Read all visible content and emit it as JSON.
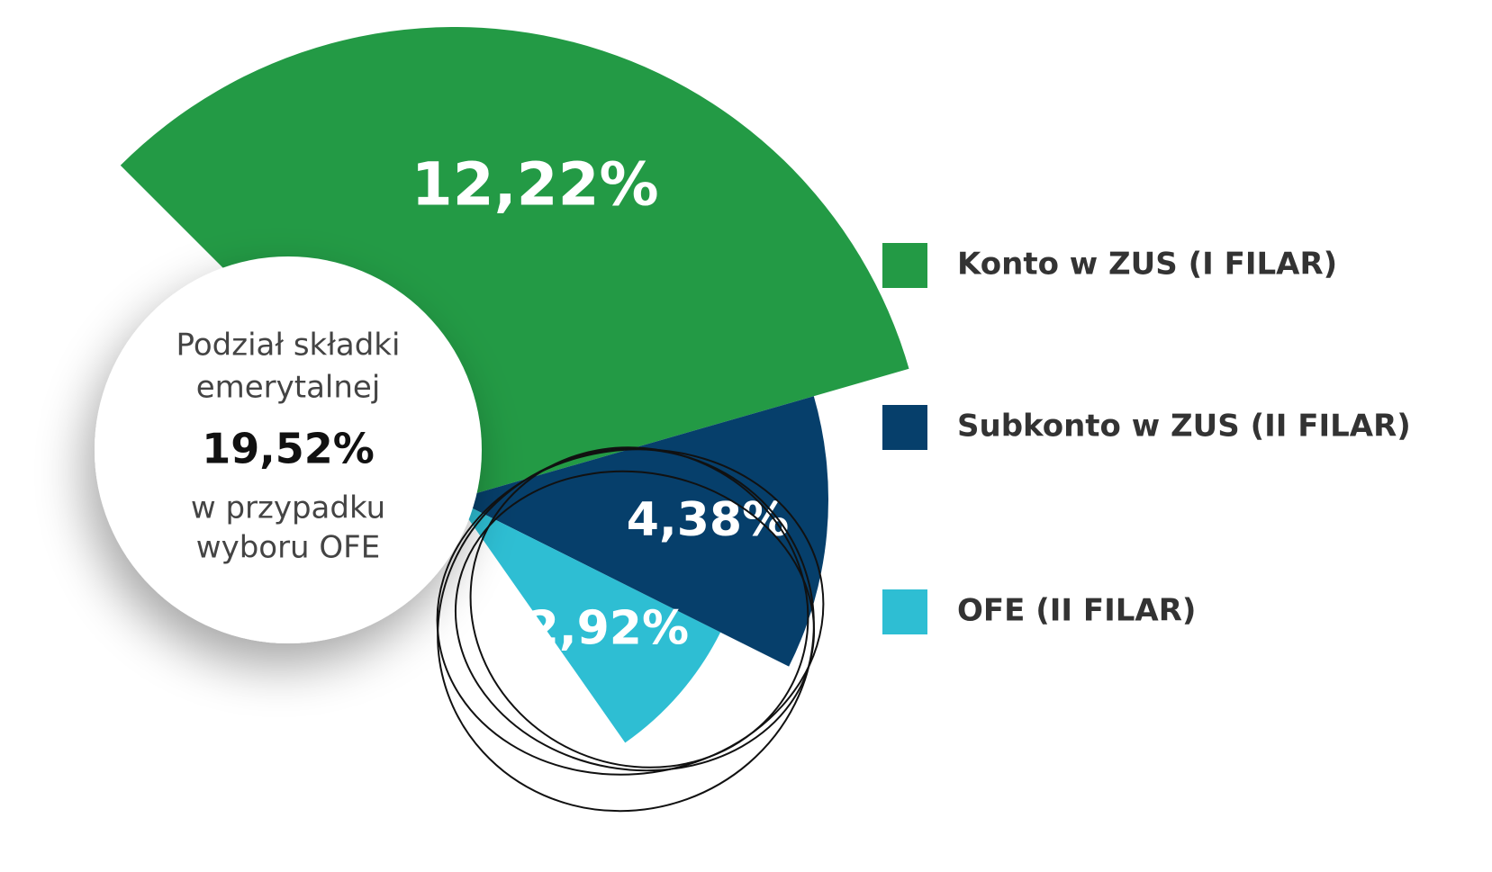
{
  "chart_data": {
    "type": "pie",
    "categories": [
      "Konto w ZUS (I FILAR)",
      "Subkonto w ZUS (II FILAR)",
      "OFE (II FILAR)"
    ],
    "values": [
      12.22,
      4.38,
      2.92
    ],
    "value_labels": [
      "12,22%",
      "4,38%",
      "2,92%"
    ],
    "colors": [
      "#239a45",
      "#063f6b",
      "#2ebed3"
    ],
    "center_title": [
      "Podział składki",
      "emerytalnej"
    ],
    "total": 19.52,
    "total_label": "19,52%",
    "center_note": [
      "w przypadku",
      "wyboru OFE"
    ]
  }
}
